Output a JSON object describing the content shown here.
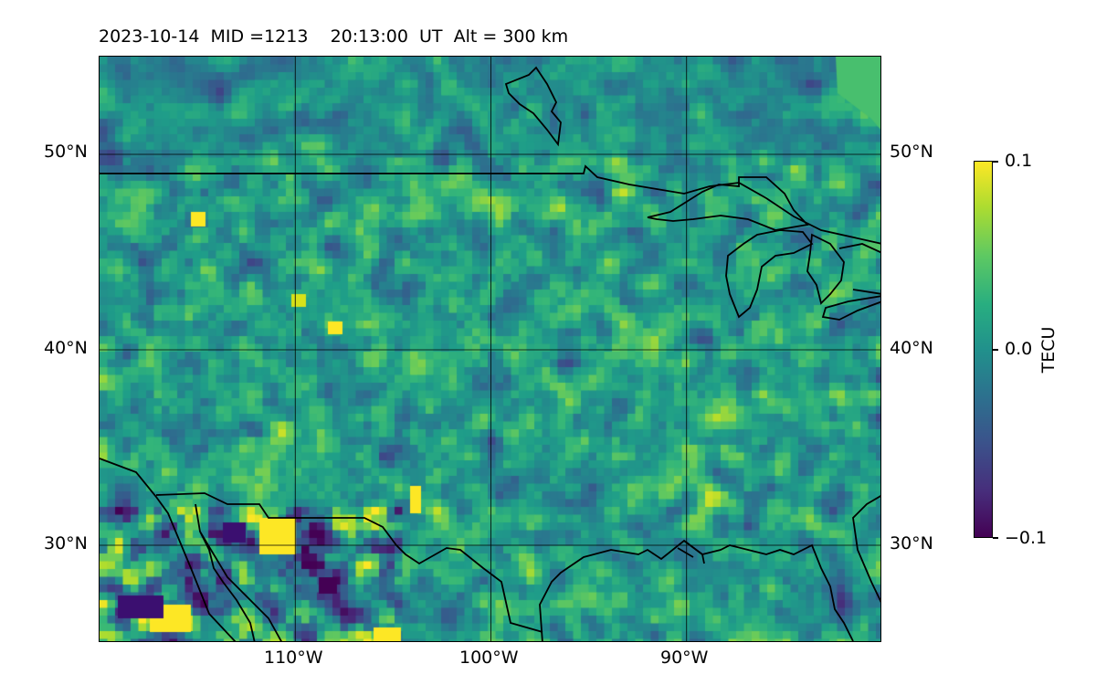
{
  "title": "2023-10-14  MID =1213    20:13:00  UT  Alt = 300 km",
  "map": {
    "extent": {
      "lon_min": -120,
      "lon_max": -80,
      "lat_min": 25,
      "lat_max": 55
    },
    "lat_gridlines": [
      30,
      40,
      50
    ],
    "lon_gridlines": [
      -110,
      -100,
      -90
    ],
    "lat_labels": {
      "30": "30°N",
      "40": "40°N",
      "50": "50°N"
    },
    "lon_labels": {
      "-110": "110°W",
      "-100": "100°W",
      "-90": "90°W"
    },
    "colormap": "viridis",
    "field": "TEC perturbation (noisy)"
  },
  "colorbar": {
    "label": "TECU",
    "min": -0.1,
    "max": 0.1,
    "ticks": [
      {
        "value": 0.1,
        "label": "0.1"
      },
      {
        "value": 0.0,
        "label": "0.0"
      },
      {
        "value": -0.1,
        "label": "−0.1"
      }
    ]
  },
  "colors": {
    "coastline": "#000000",
    "gridline": "#000000",
    "canada_patch": "#48bf6e"
  }
}
